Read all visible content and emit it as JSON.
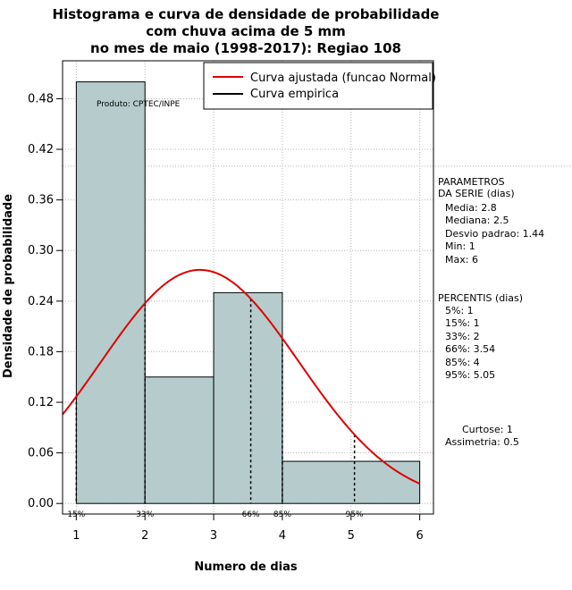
{
  "chart_data": {
    "type": "histogram",
    "title_lines": [
      "Histograma e curva de densidade de probabilidade",
      "com chuva acima de 5 mm",
      "no mes de maio (1998-2017): Regiao 108"
    ],
    "xlabel": "Numero de dias",
    "ylabel": "Densidade de probabilidade",
    "xlim": [
      0.8,
      6.2
    ],
    "ylim": [
      -0.0125,
      0.525
    ],
    "x_ticks": [
      "1",
      "2",
      "3",
      "4",
      "5",
      "6"
    ],
    "y_ticks": [
      "0.00",
      "0.06",
      "0.12",
      "0.18",
      "0.24",
      "0.30",
      "0.36",
      "0.42",
      "0.48"
    ],
    "bins": [
      {
        "start": 1,
        "end": 2,
        "density": 0.5
      },
      {
        "start": 2,
        "end": 3,
        "density": 0.15
      },
      {
        "start": 3,
        "end": 4,
        "density": 0.25
      },
      {
        "start": 4,
        "end": 6,
        "density": 0.05
      }
    ],
    "normal_fit": {
      "mean": 2.8,
      "sd": 1.44
    },
    "reference_line_y": 0.4,
    "percentile_markers": [
      {
        "label": "15%",
        "x": 1
      },
      {
        "label": "33%",
        "x": 2
      },
      {
        "label": "66%",
        "x": 3.54
      },
      {
        "label": "85%",
        "x": 4
      },
      {
        "label": "95%",
        "x": 5.05
      }
    ],
    "legend": {
      "position": "top-right",
      "entries": [
        {
          "label": "Curva ajustada (funcao Normal)",
          "color": "#dd0000"
        },
        {
          "label": "Curva empirica",
          "color": "#000000"
        }
      ]
    },
    "credit": "Produto: CPTEC/INPE",
    "colors": {
      "bar_fill": "#b6cccc",
      "curve": "#dd0000",
      "grid": "#b4b4b4"
    }
  },
  "side_panel": {
    "parametros_title": [
      "PARAMETROS",
      "DA SERIE (dias)"
    ],
    "parametros": [
      "Media: 2.8",
      "Mediana: 2.5",
      "Desvio padrao: 1.44",
      "Min: 1",
      "Max: 6"
    ],
    "percentis_title": "PERCENTIS (dias)",
    "percentis": [
      "5%: 1",
      "15%: 1",
      "33%: 2",
      "66%: 3.54",
      "85%: 4",
      "95%: 5.05"
    ],
    "curtose": "Curtose: 1",
    "assimetria": "Assimetria: 0.5"
  }
}
